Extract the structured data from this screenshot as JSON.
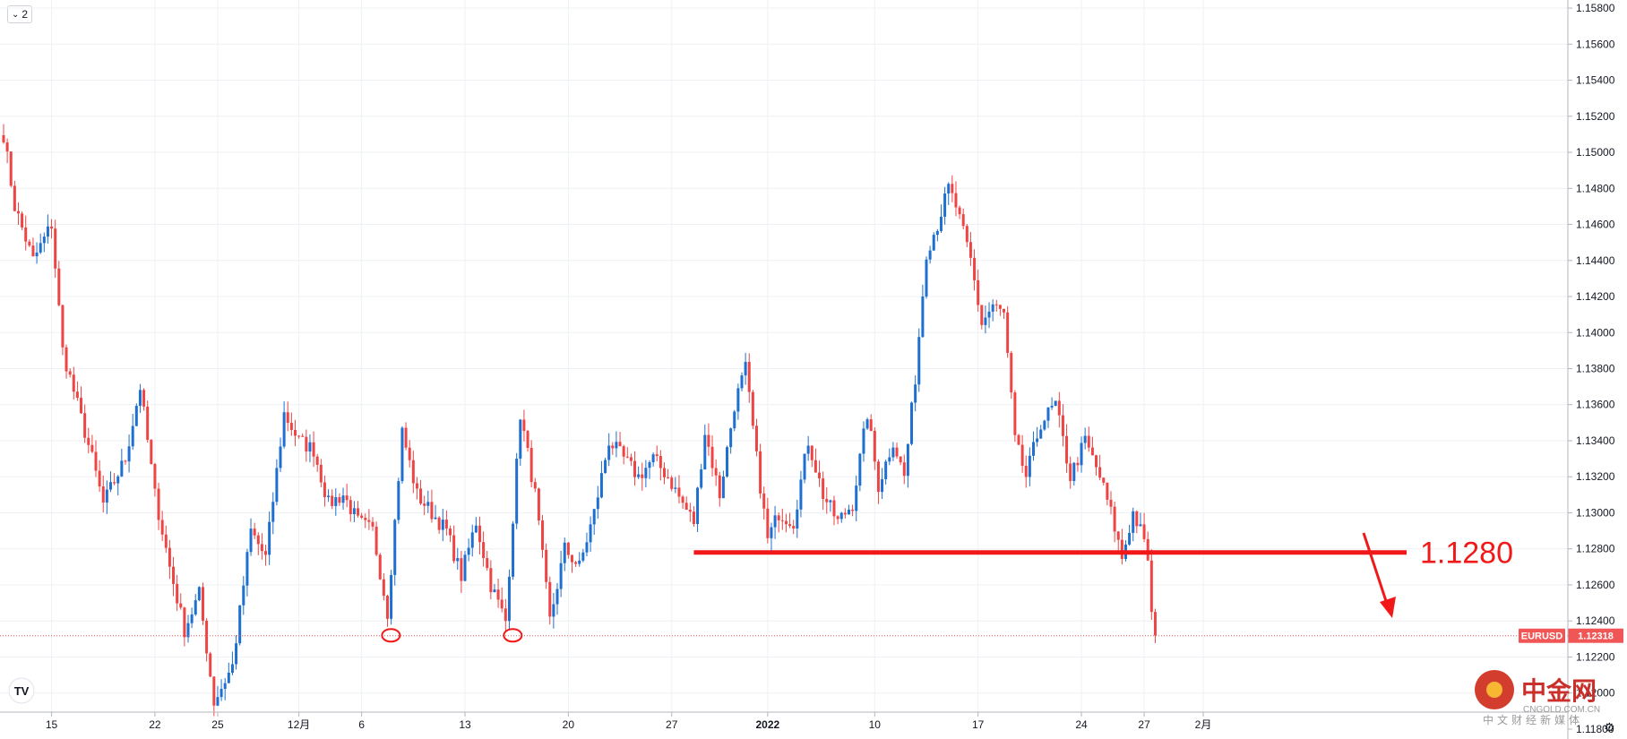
{
  "chart_data": {
    "type": "candlestick",
    "symbol": "EURUSD",
    "last_price": "1.12318",
    "y_ticks": [
      "1.15800",
      "1.15600",
      "1.15400",
      "1.15200",
      "1.15000",
      "1.14800",
      "1.14600",
      "1.14400",
      "1.14200",
      "1.14000",
      "1.13800",
      "1.13600",
      "1.13400",
      "1.13200",
      "1.13000",
      "1.12800",
      "1.12600",
      "1.12400",
      "1.12200",
      "1.12000",
      "1.11800"
    ],
    "ylim": [
      1.1175,
      1.1585
    ],
    "x_ticks": [
      {
        "label": "15",
        "bold": false
      },
      {
        "label": "22",
        "bold": false
      },
      {
        "label": "25",
        "bold": false
      },
      {
        "label": "12月",
        "bold": false
      },
      {
        "label": "6",
        "bold": false
      },
      {
        "label": "13",
        "bold": false
      },
      {
        "label": "20",
        "bold": false
      },
      {
        "label": "27",
        "bold": false
      },
      {
        "label": "2022",
        "bold": true
      },
      {
        "label": "10",
        "bold": false
      },
      {
        "label": "17",
        "bold": false
      },
      {
        "label": "24",
        "bold": false
      },
      {
        "label": "27",
        "bold": false
      },
      {
        "label": "2月",
        "bold": false
      }
    ],
    "anchors": [
      {
        "bar": 0,
        "price": 1.151
      },
      {
        "bar": 3,
        "price": 1.147
      },
      {
        "bar": 8,
        "price": 1.144
      },
      {
        "bar": 13,
        "price": 1.146
      },
      {
        "bar": 16,
        "price": 1.139
      },
      {
        "bar": 20,
        "price": 1.136
      },
      {
        "bar": 24,
        "price": 1.133
      },
      {
        "bar": 27,
        "price": 1.1305
      },
      {
        "bar": 33,
        "price": 1.133
      },
      {
        "bar": 37,
        "price": 1.137
      },
      {
        "bar": 41,
        "price": 1.131
      },
      {
        "bar": 45,
        "price": 1.127
      },
      {
        "bar": 49,
        "price": 1.1235
      },
      {
        "bar": 53,
        "price": 1.1255
      },
      {
        "bar": 57,
        "price": 1.1195
      },
      {
        "bar": 62,
        "price": 1.1215
      },
      {
        "bar": 67,
        "price": 1.129
      },
      {
        "bar": 71,
        "price": 1.1275
      },
      {
        "bar": 76,
        "price": 1.1355
      },
      {
        "bar": 80,
        "price": 1.134
      },
      {
        "bar": 84,
        "price": 1.1335
      },
      {
        "bar": 88,
        "price": 1.1305
      },
      {
        "bar": 92,
        "price": 1.131
      },
      {
        "bar": 96,
        "price": 1.1295
      },
      {
        "bar": 100,
        "price": 1.129
      },
      {
        "bar": 104,
        "price": 1.1245
      },
      {
        "bar": 108,
        "price": 1.1345
      },
      {
        "bar": 112,
        "price": 1.131
      },
      {
        "bar": 116,
        "price": 1.13
      },
      {
        "bar": 120,
        "price": 1.129
      },
      {
        "bar": 124,
        "price": 1.1265
      },
      {
        "bar": 128,
        "price": 1.1295
      },
      {
        "bar": 132,
        "price": 1.126
      },
      {
        "bar": 136,
        "price": 1.124
      },
      {
        "bar": 140,
        "price": 1.1355
      },
      {
        "bar": 144,
        "price": 1.131
      },
      {
        "bar": 148,
        "price": 1.124
      },
      {
        "bar": 152,
        "price": 1.128
      },
      {
        "bar": 156,
        "price": 1.127
      },
      {
        "bar": 160,
        "price": 1.13
      },
      {
        "bar": 164,
        "price": 1.134
      },
      {
        "bar": 168,
        "price": 1.133
      },
      {
        "bar": 172,
        "price": 1.132
      },
      {
        "bar": 176,
        "price": 1.133
      },
      {
        "bar": 180,
        "price": 1.132
      },
      {
        "bar": 184,
        "price": 1.1305
      },
      {
        "bar": 187,
        "price": 1.1295
      },
      {
        "bar": 190,
        "price": 1.1345
      },
      {
        "bar": 194,
        "price": 1.131
      },
      {
        "bar": 198,
        "price": 1.136
      },
      {
        "bar": 201,
        "price": 1.138
      },
      {
        "bar": 204,
        "price": 1.133
      },
      {
        "bar": 207,
        "price": 1.1285
      },
      {
        "bar": 210,
        "price": 1.13
      },
      {
        "bar": 214,
        "price": 1.1295
      },
      {
        "bar": 218,
        "price": 1.134
      },
      {
        "bar": 222,
        "price": 1.131
      },
      {
        "bar": 226,
        "price": 1.1295
      },
      {
        "bar": 230,
        "price": 1.1305
      },
      {
        "bar": 234,
        "price": 1.1355
      },
      {
        "bar": 237,
        "price": 1.1315
      },
      {
        "bar": 241,
        "price": 1.134
      },
      {
        "bar": 244,
        "price": 1.132
      },
      {
        "bar": 247,
        "price": 1.1375
      },
      {
        "bar": 250,
        "price": 1.1445
      },
      {
        "bar": 253,
        "price": 1.146
      },
      {
        "bar": 256,
        "price": 1.148
      },
      {
        "bar": 258,
        "price": 1.147
      },
      {
        "bar": 262,
        "price": 1.144
      },
      {
        "bar": 265,
        "price": 1.1405
      },
      {
        "bar": 268,
        "price": 1.1415
      },
      {
        "bar": 271,
        "price": 1.141
      },
      {
        "bar": 274,
        "price": 1.134
      },
      {
        "bar": 277,
        "price": 1.132
      },
      {
        "bar": 281,
        "price": 1.135
      },
      {
        "bar": 285,
        "price": 1.136
      },
      {
        "bar": 289,
        "price": 1.132
      },
      {
        "bar": 293,
        "price": 1.134
      },
      {
        "bar": 297,
        "price": 1.132
      },
      {
        "bar": 300,
        "price": 1.13
      },
      {
        "bar": 303,
        "price": 1.1275
      },
      {
        "bar": 306,
        "price": 1.13
      },
      {
        "bar": 308,
        "price": 1.129
      },
      {
        "bar": 310,
        "price": 1.1275
      },
      {
        "bar": 311,
        "price": 1.1245
      },
      {
        "bar": 312,
        "price": 1.1232
      }
    ],
    "annotations": {
      "level_label": "1.1280",
      "level_price": 1.1278,
      "level_from_bar": 187,
      "level_to_bar": 314,
      "circles": [
        {
          "bar": 103,
          "price": 1.1232
        },
        {
          "bar": 136,
          "price": 1.1232
        }
      ],
      "last_price_line": 1.12318
    },
    "colors": {
      "up": "#1e6fd0",
      "down": "#ef4444",
      "annotation": "#f01818",
      "tag_bg": "#f05656",
      "grid": "#eef1f5"
    }
  },
  "toolbar": {
    "collapse_count": "2",
    "collapse_icon": "chevron-down-icon"
  },
  "watermark": {
    "main": "中金网",
    "url": "CNGOLD.COM.CN",
    "slogan": "中文财经新媒体"
  }
}
